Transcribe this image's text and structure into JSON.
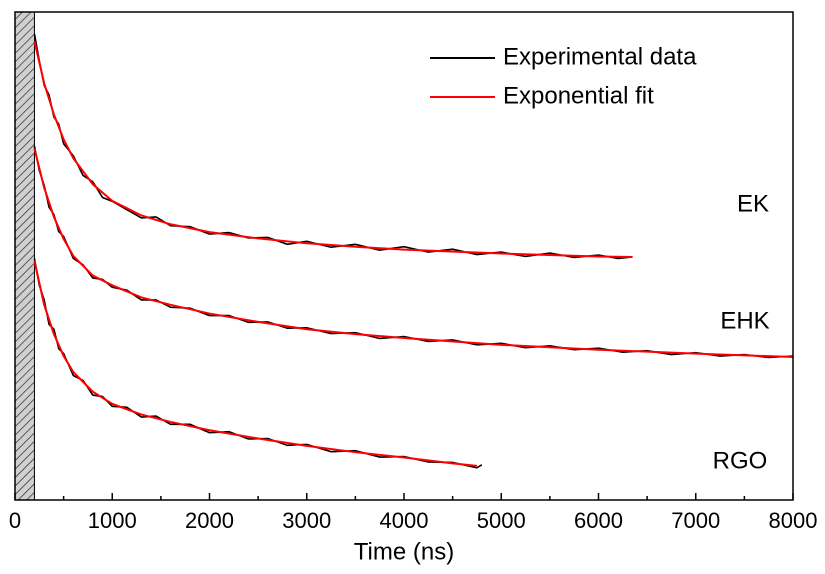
{
  "chart_data": {
    "type": "line",
    "x_label": "Time (ns)",
    "xlim": [
      0,
      8000
    ],
    "xticks": [
      0,
      1000,
      2000,
      3000,
      4000,
      5000,
      6000,
      7000,
      8000
    ],
    "xminor_ticks": [
      500,
      1500,
      2500,
      3500,
      4500,
      5500,
      6500,
      7500
    ],
    "ylim": [
      0,
      1
    ],
    "shaded_xrange": [
      0,
      200
    ],
    "legend_position": "upper right",
    "legend": [
      {
        "name": "Experimental data",
        "color": "#000000"
      },
      {
        "name": "Exponential fit",
        "color": "#ff0000"
      }
    ],
    "curves": [
      {
        "label": "EK",
        "experimental": {
          "x": [
            200,
            250,
            300,
            350,
            400,
            450,
            500,
            600,
            700,
            800,
            900,
            1000,
            1150,
            1300,
            1450,
            1600,
            1800,
            2000,
            2200,
            2400,
            2600,
            2800,
            3000,
            3250,
            3500,
            3750,
            4000,
            4250,
            4500,
            4750,
            5000,
            5250,
            5500,
            5750,
            6000,
            6200,
            6350
          ],
          "values": [
            0.955,
            0.9,
            0.85,
            0.83,
            0.785,
            0.77,
            0.73,
            0.705,
            0.665,
            0.652,
            0.62,
            0.612,
            0.595,
            0.578,
            0.58,
            0.562,
            0.56,
            0.545,
            0.548,
            0.537,
            0.538,
            0.524,
            0.53,
            0.518,
            0.524,
            0.512,
            0.519,
            0.508,
            0.514,
            0.503,
            0.508,
            0.499,
            0.506,
            0.497,
            0.502,
            0.495,
            0.498
          ]
        },
        "fit": {
          "x": [
            200,
            300,
            400,
            500,
            600,
            800,
            1000,
            1300,
            1600,
            2000,
            2500,
            3000,
            3500,
            4000,
            5000,
            6000,
            6350
          ],
          "values": [
            0.94,
            0.854,
            0.79,
            0.739,
            0.7,
            0.647,
            0.613,
            0.583,
            0.565,
            0.549,
            0.536,
            0.526,
            0.519,
            0.513,
            0.505,
            0.499,
            0.498
          ]
        }
      },
      {
        "label": "EHK",
        "experimental": {
          "x": [
            200,
            250,
            300,
            350,
            400,
            450,
            500,
            600,
            700,
            800,
            900,
            1000,
            1150,
            1300,
            1450,
            1600,
            1800,
            2000,
            2200,
            2400,
            2600,
            2800,
            3000,
            3250,
            3500,
            3750,
            4000,
            4250,
            4500,
            4750,
            5000,
            5250,
            5500,
            5750,
            6000,
            6250,
            6500,
            6750,
            7000,
            7250,
            7500,
            7750,
            8000
          ],
          "values": [
            0.725,
            0.675,
            0.645,
            0.6,
            0.585,
            0.55,
            0.54,
            0.495,
            0.482,
            0.455,
            0.452,
            0.436,
            0.43,
            0.41,
            0.41,
            0.395,
            0.393,
            0.378,
            0.378,
            0.364,
            0.365,
            0.352,
            0.353,
            0.341,
            0.343,
            0.331,
            0.335,
            0.325,
            0.328,
            0.318,
            0.321,
            0.312,
            0.316,
            0.308,
            0.311,
            0.303,
            0.306,
            0.298,
            0.302,
            0.295,
            0.298,
            0.292,
            0.295
          ]
        },
        "fit": {
          "x": [
            200,
            300,
            400,
            500,
            600,
            800,
            1000,
            1300,
            1600,
            2000,
            2500,
            3000,
            3500,
            4000,
            5000,
            6000,
            7000,
            8000
          ],
          "values": [
            0.72,
            0.64,
            0.58,
            0.535,
            0.5,
            0.46,
            0.44,
            0.415,
            0.4,
            0.382,
            0.365,
            0.35,
            0.34,
            0.332,
            0.318,
            0.308,
            0.3,
            0.293
          ]
        }
      },
      {
        "label": "RGO",
        "experimental": {
          "x": [
            200,
            250,
            300,
            350,
            400,
            450,
            500,
            600,
            700,
            800,
            900,
            1000,
            1150,
            1300,
            1450,
            1600,
            1800,
            2000,
            2200,
            2400,
            2600,
            2800,
            3000,
            3250,
            3500,
            3750,
            4000,
            4250,
            4500,
            4750,
            4800
          ],
          "values": [
            0.495,
            0.44,
            0.41,
            0.36,
            0.35,
            0.31,
            0.3,
            0.255,
            0.245,
            0.215,
            0.212,
            0.192,
            0.19,
            0.17,
            0.172,
            0.155,
            0.155,
            0.138,
            0.14,
            0.125,
            0.126,
            0.112,
            0.114,
            0.099,
            0.101,
            0.088,
            0.089,
            0.078,
            0.077,
            0.066,
            0.072
          ]
        },
        "fit": {
          "x": [
            200,
            300,
            400,
            500,
            600,
            800,
            1000,
            1300,
            1600,
            2000,
            2500,
            3000,
            3500,
            4000,
            4500,
            4750
          ],
          "values": [
            0.49,
            0.4,
            0.34,
            0.295,
            0.262,
            0.222,
            0.197,
            0.175,
            0.16,
            0.143,
            0.126,
            0.111,
            0.098,
            0.087,
            0.075,
            0.07
          ]
        }
      }
    ]
  }
}
